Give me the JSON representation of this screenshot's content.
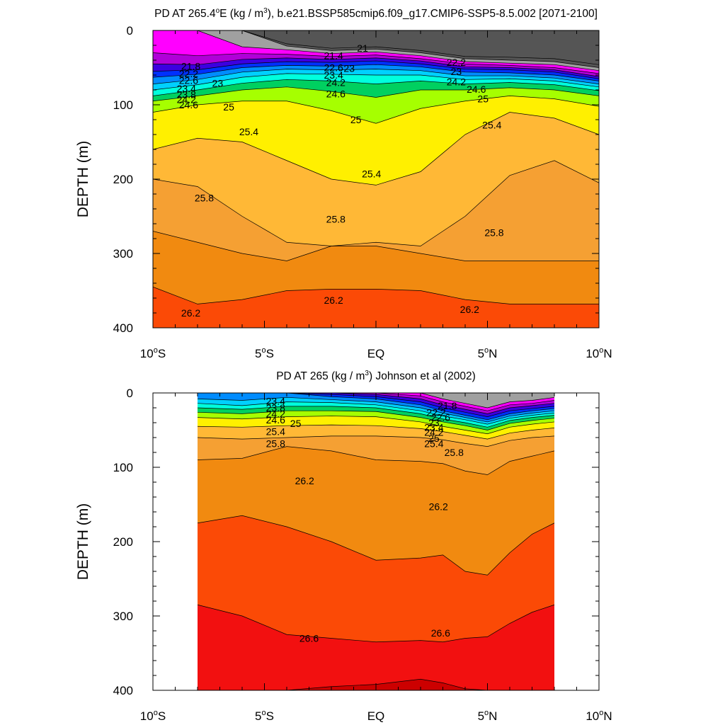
{
  "chart_data": [
    {
      "type": "contour",
      "title": "PD AT 265.4°E (kg / m³), b.e21.BSSP585cmip6.f09_g17.CMIP6-SSP5-8.5.002 [2071-2100]",
      "title_parts": [
        "PD AT 265.4",
        "o",
        "E (kg / m",
        "3",
        "), b.e21.BSSP585cmip6.f09_g17.CMIP6-SSP5-8.5.002 [2071-2100]"
      ],
      "ylabel": "DEPTH (m)",
      "xlim": [
        -10,
        10
      ],
      "ylim": [
        400,
        0
      ],
      "yticks": [
        "0",
        "100",
        "200",
        "300",
        "400"
      ],
      "xticks": [
        {
          "value": -10,
          "pre": "10",
          "sup": "o",
          "post": "S"
        },
        {
          "value": -5,
          "pre": "5",
          "sup": "o",
          "post": "S"
        },
        {
          "value": 0,
          "pre": "EQ",
          "sup": "",
          "post": ""
        },
        {
          "value": 5,
          "pre": "5",
          "sup": "o",
          "post": "N"
        },
        {
          "value": 10,
          "pre": "10",
          "sup": "o",
          "post": "N"
        }
      ],
      "x_extent": [
        -10,
        10
      ],
      "x": [
        -10,
        -8,
        -6,
        -4,
        -2,
        0,
        2,
        4,
        6,
        8,
        10
      ],
      "isopycnals": [
        {
          "sigma": 20.6,
          "depth": [
            0,
            0,
            0,
            18,
            24,
            22,
            27,
            35,
            36,
            38,
            46
          ]
        },
        {
          "sigma": 21.0,
          "depth": [
            0,
            0,
            0,
            21,
            27,
            25,
            30,
            38,
            40,
            42,
            50
          ]
        },
        {
          "sigma": 21.4,
          "depth": [
            0,
            0,
            22,
            26,
            31,
            29,
            34,
            42,
            44,
            46,
            54
          ]
        },
        {
          "sigma": 21.8,
          "depth": [
            30,
            34,
            31,
            32,
            35,
            33,
            38,
            45,
            47,
            50,
            58
          ]
        },
        {
          "sigma": 22.2,
          "depth": [
            45,
            46,
            39,
            37,
            39,
            37,
            41,
            49,
            50,
            53,
            62
          ]
        },
        {
          "sigma": 22.6,
          "depth": [
            55,
            53,
            45,
            42,
            43,
            41,
            45,
            52,
            53,
            56,
            65
          ]
        },
        {
          "sigma": 23.0,
          "depth": [
            63,
            59,
            50,
            47,
            48,
            46,
            49,
            56,
            57,
            60,
            68
          ]
        },
        {
          "sigma": 23.4,
          "depth": [
            72,
            66,
            56,
            52,
            53,
            52,
            54,
            61,
            61,
            64,
            72
          ]
        },
        {
          "sigma": 23.8,
          "depth": [
            80,
            73,
            63,
            58,
            59,
            60,
            60,
            66,
            65,
            68,
            76
          ]
        },
        {
          "sigma": 24.2,
          "depth": [
            88,
            80,
            71,
            66,
            68,
            72,
            68,
            72,
            70,
            73,
            81
          ]
        },
        {
          "sigma": 24.6,
          "depth": [
            95,
            88,
            80,
            76,
            82,
            90,
            80,
            80,
            77,
            80,
            88
          ]
        },
        {
          "sigma": 25.0,
          "depth": [
            110,
            100,
            95,
            95,
            108,
            125,
            105,
            95,
            88,
            92,
            102
          ]
        },
        {
          "sigma": 25.4,
          "depth": [
            160,
            145,
            150,
            175,
            200,
            208,
            190,
            140,
            110,
            118,
            140
          ]
        },
        {
          "sigma": 25.8,
          "depth": [
            200,
            210,
            250,
            285,
            290,
            285,
            290,
            250,
            195,
            175,
            205
          ]
        },
        {
          "sigma": 26.2,
          "depth": [
            270,
            285,
            300,
            310,
            290,
            290,
            300,
            310,
            310,
            310,
            310
          ]
        },
        {
          "sigma": 26.6,
          "depth": [
            345,
            368,
            362,
            350,
            348,
            348,
            350,
            362,
            368,
            368,
            368
          ]
        }
      ],
      "bottom_sigma": 26.8,
      "contour_labels": [
        {
          "text": "21",
          "x": -0.6,
          "y": 24
        },
        {
          "text": "21.4",
          "x": -1.9,
          "y": 34
        },
        {
          "text": "21.8",
          "x": -8.3,
          "y": 48
        },
        {
          "text": "22.2",
          "x": -8.4,
          "y": 58
        },
        {
          "text": "22.6",
          "x": -8.4,
          "y": 67
        },
        {
          "text": "23",
          "x": -7.1,
          "y": 71
        },
        {
          "text": "23.4",
          "x": -8.5,
          "y": 78
        },
        {
          "text": "23.8",
          "x": -8.5,
          "y": 86
        },
        {
          "text": "24.2",
          "x": -8.5,
          "y": 93
        },
        {
          "text": "24.6",
          "x": -8.4,
          "y": 100
        },
        {
          "text": "25",
          "x": -6.6,
          "y": 103
        },
        {
          "text": "25.4",
          "x": -5.7,
          "y": 136
        },
        {
          "text": "25.8",
          "x": -7.7,
          "y": 225
        },
        {
          "text": "26.2",
          "x": -8.3,
          "y": 380
        },
        {
          "text": "22.6",
          "x": -1.9,
          "y": 50
        },
        {
          "text": "23",
          "x": -1.2,
          "y": 51
        },
        {
          "text": "23.4",
          "x": -1.9,
          "y": 60
        },
        {
          "text": "24.2",
          "x": -1.8,
          "y": 70
        },
        {
          "text": "24.6",
          "x": -1.8,
          "y": 85
        },
        {
          "text": "25",
          "x": -0.9,
          "y": 120
        },
        {
          "text": "25.4",
          "x": -0.2,
          "y": 193
        },
        {
          "text": "25.8",
          "x": -1.8,
          "y": 254
        },
        {
          "text": "26.2",
          "x": -1.9,
          "y": 363
        },
        {
          "text": "22.2",
          "x": 3.6,
          "y": 43
        },
        {
          "text": "23",
          "x": 3.6,
          "y": 55
        },
        {
          "text": "24.2",
          "x": 3.6,
          "y": 69
        },
        {
          "text": "24.6",
          "x": 4.5,
          "y": 79
        },
        {
          "text": "25",
          "x": 4.8,
          "y": 92
        },
        {
          "text": "25.4",
          "x": 5.2,
          "y": 127
        },
        {
          "text": "25.8",
          "x": 5.3,
          "y": 272
        },
        {
          "text": "26.2",
          "x": 4.2,
          "y": 375
        }
      ]
    },
    {
      "type": "contour",
      "title": "PD AT 265 (kg / m³) Johnson et al (2002)",
      "title_parts": [
        "PD AT 265 (kg / m",
        "3",
        ") Johnson et al (2002)"
      ],
      "ylabel": "DEPTH (m)",
      "xlim": [
        -10,
        10
      ],
      "ylim": [
        400,
        0
      ],
      "yticks": [
        "0",
        "100",
        "200",
        "300",
        "400"
      ],
      "xticks": [
        {
          "value": -10,
          "pre": "10",
          "sup": "o",
          "post": "S"
        },
        {
          "value": -5,
          "pre": "5",
          "sup": "o",
          "post": "S"
        },
        {
          "value": 0,
          "pre": "EQ",
          "sup": "",
          "post": ""
        },
        {
          "value": 5,
          "pre": "5",
          "sup": "o",
          "post": "N"
        },
        {
          "value": 10,
          "pre": "10",
          "sup": "o",
          "post": "N"
        }
      ],
      "x_extent": [
        -8,
        8
      ],
      "x": [
        -8,
        -6,
        -4,
        -2,
        0,
        2,
        3,
        4,
        5,
        6,
        7,
        8
      ],
      "isopycnals": [
        {
          "sigma": 21.4,
          "depth": [
            0,
            0,
            0,
            0,
            0,
            0,
            8,
            14,
            20,
            12,
            10,
            6
          ]
        },
        {
          "sigma": 21.8,
          "depth": [
            0,
            0,
            0,
            0,
            0,
            4,
            12,
            18,
            24,
            16,
            14,
            10
          ]
        },
        {
          "sigma": 22.2,
          "depth": [
            0,
            0,
            0,
            0,
            2,
            8,
            16,
            22,
            28,
            20,
            17,
            14
          ]
        },
        {
          "sigma": 22.6,
          "depth": [
            0,
            0,
            0,
            2,
            5,
            12,
            20,
            26,
            32,
            24,
            21,
            18
          ]
        },
        {
          "sigma": 23.0,
          "depth": [
            0,
            0,
            0,
            5,
            8,
            16,
            24,
            30,
            36,
            28,
            24,
            21
          ]
        },
        {
          "sigma": 23.4,
          "depth": [
            8,
            10,
            6,
            9,
            12,
            20,
            27,
            33,
            39,
            31,
            27,
            24
          ]
        },
        {
          "sigma": 23.8,
          "depth": [
            14,
            17,
            12,
            13,
            16,
            24,
            31,
            36,
            42,
            34,
            30,
            27
          ]
        },
        {
          "sigma": 24.2,
          "depth": [
            20,
            22,
            18,
            18,
            20,
            28,
            35,
            40,
            46,
            37,
            33,
            30
          ]
        },
        {
          "sigma": 24.6,
          "depth": [
            26,
            28,
            24,
            24,
            25,
            33,
            39,
            44,
            50,
            41,
            37,
            34
          ]
        },
        {
          "sigma": 25.0,
          "depth": [
            33,
            35,
            32,
            31,
            32,
            39,
            45,
            50,
            55,
            46,
            42,
            39
          ]
        },
        {
          "sigma": 25.4,
          "depth": [
            45,
            46,
            44,
            43,
            44,
            48,
            52,
            57,
            62,
            54,
            50,
            47
          ]
        },
        {
          "sigma": 25.8,
          "depth": [
            60,
            62,
            60,
            58,
            58,
            60,
            63,
            68,
            72,
            64,
            60,
            58
          ]
        },
        {
          "sigma": 26.2,
          "depth": [
            90,
            88,
            72,
            78,
            90,
            92,
            95,
            105,
            110,
            92,
            85,
            78
          ]
        },
        {
          "sigma": 26.6,
          "depth": [
            175,
            165,
            180,
            200,
            225,
            222,
            218,
            240,
            245,
            215,
            190,
            175
          ]
        },
        {
          "sigma": 26.8,
          "depth": [
            285,
            300,
            325,
            330,
            335,
            333,
            335,
            330,
            328,
            310,
            295,
            285
          ]
        },
        {
          "sigma": 27.0,
          "depth": [
            400,
            400,
            400,
            395,
            392,
            385,
            390,
            398,
            400,
            400,
            400,
            400
          ]
        }
      ],
      "bottom_sigma": 27.0,
      "contour_labels": [
        {
          "text": "23.4",
          "x": -4.5,
          "y": 11
        },
        {
          "text": "23.8",
          "x": -4.5,
          "y": 20
        },
        {
          "text": "24.2",
          "x": -4.5,
          "y": 28
        },
        {
          "text": "24.6",
          "x": -4.5,
          "y": 36
        },
        {
          "text": "25",
          "x": -3.6,
          "y": 41
        },
        {
          "text": "25.4",
          "x": -4.5,
          "y": 52
        },
        {
          "text": "25.8",
          "x": -4.5,
          "y": 68
        },
        {
          "text": "26.2",
          "x": -3.2,
          "y": 118
        },
        {
          "text": "21.8",
          "x": 3.2,
          "y": 17
        },
        {
          "text": "22.2",
          "x": 2.7,
          "y": 26
        },
        {
          "text": "22.6",
          "x": 2.9,
          "y": 33
        },
        {
          "text": "23",
          "x": 2.6,
          "y": 40
        },
        {
          "text": "23.4",
          "x": 2.6,
          "y": 46
        },
        {
          "text": "24.2",
          "x": 2.6,
          "y": 53
        },
        {
          "text": "25",
          "x": 2.6,
          "y": 61
        },
        {
          "text": "25.4",
          "x": 2.6,
          "y": 68
        },
        {
          "text": "25.8",
          "x": 3.5,
          "y": 80
        },
        {
          "text": "26.2",
          "x": 2.8,
          "y": 153
        },
        {
          "text": "26.6",
          "x": -3.0,
          "y": 330
        },
        {
          "text": "26.6",
          "x": 2.9,
          "y": 323
        }
      ]
    }
  ],
  "colors": {
    "levels": [
      21.0,
      21.4,
      21.8,
      22.2,
      22.6,
      23.0,
      23.4,
      23.8,
      24.2,
      24.6,
      25.0,
      25.4,
      25.8,
      26.2,
      26.6,
      26.8,
      27.0
    ],
    "fills": [
      "#555555",
      "#a0a0a0",
      "#ff00ff",
      "#b000d8",
      "#3c00e0",
      "#0030ff",
      "#008cff",
      "#00d0ff",
      "#00ffdd",
      "#00d060",
      "#a6ff00",
      "#fff000",
      "#ffb836",
      "#f5a033",
      "#f18a10",
      "#fb4a06",
      "#f21010",
      "#cc0000"
    ],
    "contour_line": "#000000",
    "background": "#ffffff"
  }
}
